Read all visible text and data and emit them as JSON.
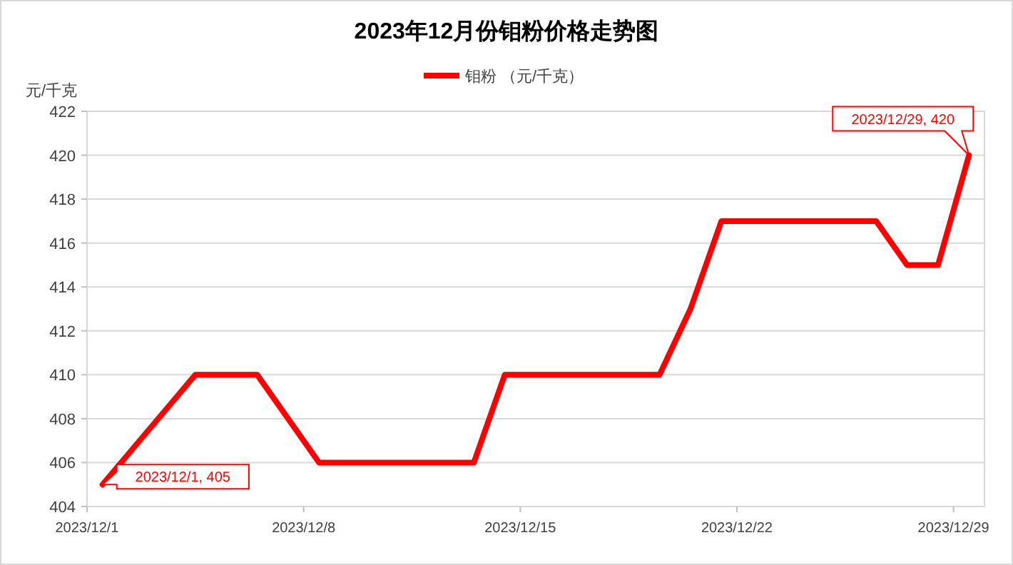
{
  "chart_data": {
    "type": "line",
    "title": "2023年12月份钼粉价格走势图",
    "ylabel": "元/千克",
    "legend": "top",
    "grid": "y",
    "marker": "none",
    "line_style": "solid",
    "x": [
      "2023-12-01",
      "2023-12-04",
      "2023-12-06",
      "2023-12-08",
      "2023-12-13",
      "2023-12-14",
      "2023-12-19",
      "2023-12-20",
      "2023-12-21",
      "2023-12-26",
      "2023-12-27",
      "2023-12-28",
      "2023-12-29"
    ],
    "series": [
      {
        "name": "钼粉 （元/千克）",
        "color": "#ff0000",
        "values": [
          405,
          410,
          410,
          406,
          406,
          410,
          410,
          413,
          417,
          417,
          415,
          415,
          420
        ]
      }
    ],
    "xlim": [
      "2023-11-30T12:00",
      "2023-12-29T12:00"
    ],
    "xticks": [
      {
        "value": "2023-11-30T12:00",
        "label": "2023/12/1"
      },
      {
        "value": "2023-12-07T12:00",
        "label": "2023/12/8"
      },
      {
        "value": "2023-12-14T12:00",
        "label": "2023/12/15"
      },
      {
        "value": "2023-12-21T12:00",
        "label": "2023/12/22"
      },
      {
        "value": "2023-12-28T12:00",
        "label": "2023/12/29"
      }
    ],
    "ylim": [
      404,
      422
    ],
    "yticks": [
      404,
      406,
      408,
      410,
      412,
      414,
      416,
      418,
      420,
      422
    ],
    "annotations": [
      {
        "text": "2023/12/1, 405",
        "x": "2023-12-01",
        "y": 405
      },
      {
        "text": "2023/12/29, 420",
        "x": "2023-12-29",
        "y": 420
      }
    ]
  }
}
